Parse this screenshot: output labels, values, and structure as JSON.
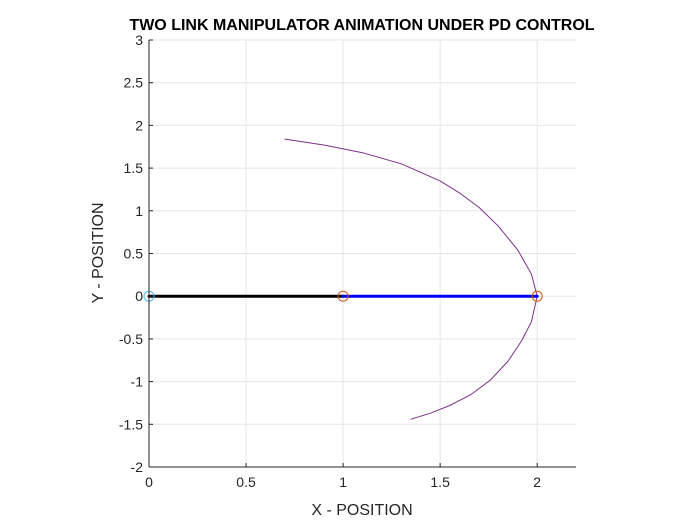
{
  "chart_data": {
    "type": "line",
    "title": "TWO LINK MANIPULATOR ANIMATION UNDER PD CONTROL",
    "xlabel": "X - POSITION",
    "ylabel": "Y - POSITION",
    "xlim": [
      0,
      2.2
    ],
    "ylim": [
      -2,
      3
    ],
    "xticks": [
      0,
      0.5,
      1,
      1.5,
      2
    ],
    "xtick_labels": [
      "0",
      "0.5",
      "1",
      "1.5",
      "2"
    ],
    "yticks": [
      -2,
      -1.5,
      -1,
      -0.5,
      0,
      0.5,
      1,
      1.5,
      2,
      2.5,
      3
    ],
    "ytick_labels": [
      "-2",
      "-1.5",
      "-1",
      "-0.5",
      "0",
      "0.5",
      "1",
      "1.5",
      "2",
      "2.5",
      "3"
    ],
    "grid": true,
    "series": [
      {
        "kind": "end-effector-trace",
        "color": "#7e2f8e",
        "x": [
          0.7,
          0.9,
          1.1,
          1.3,
          1.5,
          1.6,
          1.7,
          1.8,
          1.9,
          1.97,
          2.0,
          1.97,
          1.92,
          1.85,
          1.76,
          1.66,
          1.55,
          1.45,
          1.35
        ],
        "y": [
          1.84,
          1.77,
          1.68,
          1.55,
          1.35,
          1.21,
          1.04,
          0.82,
          0.54,
          0.26,
          0.0,
          -0.3,
          -0.52,
          -0.76,
          -0.98,
          -1.15,
          -1.28,
          -1.37,
          -1.44
        ]
      },
      {
        "kind": "link-1",
        "color": "#000000",
        "x": [
          0,
          1
        ],
        "y": [
          0,
          0
        ]
      },
      {
        "kind": "link-2",
        "color": "#0000ff",
        "x": [
          1,
          2
        ],
        "y": [
          0,
          0
        ]
      }
    ],
    "markers": [
      {
        "kind": "base-joint",
        "x": 0,
        "y": 0,
        "shape": "circle",
        "color": "#4dbeee"
      },
      {
        "kind": "elbow-joint",
        "x": 1,
        "y": 0,
        "shape": "circle",
        "color": "#d95319"
      },
      {
        "kind": "end-effector",
        "x": 2,
        "y": 0,
        "shape": "circle",
        "color": "#d95319"
      }
    ]
  }
}
